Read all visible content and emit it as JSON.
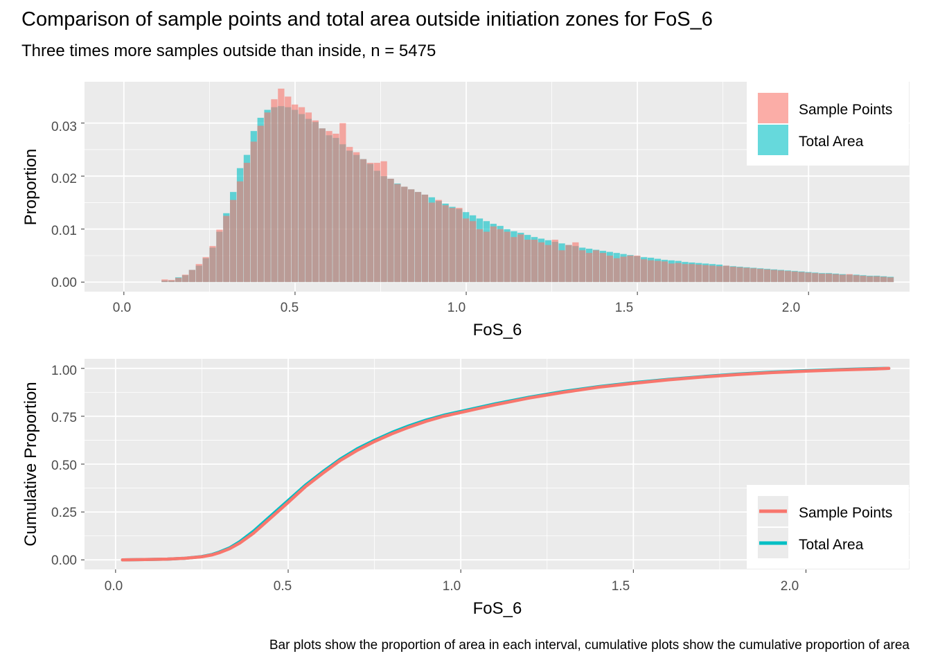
{
  "title": "Comparison of sample points and total area outside initiation zones for FoS_6",
  "subtitle": "Three times more samples outside than inside, n = 5475",
  "caption": "Bar plots show the proportion of area in each interval, cumulative plots show the cumulative proportion of area",
  "colors": {
    "sample_points": "#F8766D",
    "total_area": "#00BFC4",
    "panel_bg": "#EBEBEB",
    "grid": "#FFFFFF"
  },
  "chart_data": [
    {
      "type": "bar",
      "xlabel": "FoS_6",
      "ylabel": "Proportion",
      "xlim": [
        -0.115,
        2.295
      ],
      "ylim": [
        -0.0018,
        0.0378
      ],
      "xticks": [
        0.0,
        0.5,
        1.0,
        1.5,
        2.0
      ],
      "xtick_labels": [
        "0.0",
        "0.5",
        "1.0",
        "1.5",
        "2.0"
      ],
      "yticks": [
        0.0,
        0.01,
        0.02,
        0.03
      ],
      "ytick_labels": [
        "0.00",
        "0.01",
        "0.02",
        "0.03"
      ],
      "grid": true,
      "legend_position": "top-right",
      "bin_width": 0.02,
      "x": [
        0.12,
        0.14,
        0.16,
        0.18,
        0.2,
        0.22,
        0.24,
        0.26,
        0.28,
        0.3,
        0.32,
        0.34,
        0.36,
        0.38,
        0.4,
        0.42,
        0.44,
        0.46,
        0.48,
        0.5,
        0.52,
        0.54,
        0.56,
        0.58,
        0.6,
        0.62,
        0.64,
        0.66,
        0.68,
        0.7,
        0.72,
        0.74,
        0.76,
        0.78,
        0.8,
        0.82,
        0.84,
        0.86,
        0.88,
        0.9,
        0.92,
        0.94,
        0.96,
        0.98,
        1.0,
        1.02,
        1.04,
        1.06,
        1.08,
        1.1,
        1.12,
        1.14,
        1.16,
        1.18,
        1.2,
        1.22,
        1.24,
        1.26,
        1.28,
        1.3,
        1.32,
        1.34,
        1.36,
        1.38,
        1.4,
        1.42,
        1.44,
        1.46,
        1.48,
        1.5,
        1.52,
        1.54,
        1.56,
        1.58,
        1.6,
        1.62,
        1.64,
        1.66,
        1.68,
        1.7,
        1.72,
        1.74,
        1.76,
        1.78,
        1.8,
        1.82,
        1.84,
        1.86,
        1.88,
        1.9,
        1.92,
        1.94,
        1.96,
        1.98,
        2.0,
        2.02,
        2.04,
        2.06,
        2.08,
        2.1,
        2.12,
        2.14,
        2.16,
        2.18,
        2.2,
        2.22,
        2.24
      ],
      "series": [
        {
          "name": "Sample Points",
          "values": [
            0.0005,
            0.0004,
            0.0008,
            0.0014,
            0.0023,
            0.0034,
            0.0047,
            0.0068,
            0.0099,
            0.0125,
            0.0155,
            0.019,
            0.0225,
            0.0265,
            0.0295,
            0.032,
            0.0345,
            0.0365,
            0.035,
            0.0335,
            0.033,
            0.032,
            0.0305,
            0.029,
            0.0285,
            0.028,
            0.03,
            0.0255,
            0.0245,
            0.0232,
            0.0225,
            0.0225,
            0.0228,
            0.0195,
            0.0185,
            0.018,
            0.0175,
            0.017,
            0.0165,
            0.015,
            0.0155,
            0.0145,
            0.014,
            0.014,
            0.012,
            0.0115,
            0.01,
            0.0095,
            0.0105,
            0.01,
            0.0095,
            0.0085,
            0.009,
            0.008,
            0.008,
            0.0075,
            0.007,
            0.008,
            0.006,
            0.007,
            0.0075,
            0.006,
            0.0055,
            0.006,
            0.0055,
            0.005,
            0.0045,
            0.0048,
            0.005,
            0.005,
            0.0043,
            0.0041,
            0.004,
            0.0039,
            0.0035,
            0.0036,
            0.0034,
            0.0034,
            0.0033,
            0.0032,
            0.0031,
            0.003,
            0.0031,
            0.0029,
            0.0028,
            0.0027,
            0.0026,
            0.0025,
            0.0024,
            0.0023,
            0.0022,
            0.0021,
            0.002,
            0.0019,
            0.0018,
            0.0017,
            0.0016,
            0.0016,
            0.0015,
            0.0014,
            0.0015,
            0.0013,
            0.0012,
            0.0011,
            0.0011,
            0.001,
            0.0009
          ]
        },
        {
          "name": "Total Area",
          "values": [
            0.0003,
            0.0003,
            0.0009,
            0.0013,
            0.0023,
            0.0031,
            0.0045,
            0.0065,
            0.0095,
            0.013,
            0.017,
            0.0215,
            0.024,
            0.0285,
            0.031,
            0.0325,
            0.033,
            0.0332,
            0.033,
            0.0325,
            0.0317,
            0.0308,
            0.0302,
            0.029,
            0.0277,
            0.0272,
            0.026,
            0.0248,
            0.024,
            0.0232,
            0.0223,
            0.021,
            0.02,
            0.0195,
            0.0186,
            0.018,
            0.0175,
            0.017,
            0.0165,
            0.016,
            0.0153,
            0.0148,
            0.0142,
            0.0138,
            0.0132,
            0.0126,
            0.012,
            0.0115,
            0.011,
            0.0106,
            0.01,
            0.0096,
            0.0093,
            0.0089,
            0.0085,
            0.0082,
            0.0079,
            0.0076,
            0.0073,
            0.007,
            0.0068,
            0.0065,
            0.0063,
            0.0061,
            0.0059,
            0.0057,
            0.0055,
            0.0053,
            0.0051,
            0.0049,
            0.0047,
            0.0046,
            0.0044,
            0.0042,
            0.0041,
            0.004,
            0.0038,
            0.0037,
            0.0036,
            0.0035,
            0.0034,
            0.0033,
            0.0031,
            0.003,
            0.0029,
            0.0028,
            0.0027,
            0.0026,
            0.0025,
            0.0024,
            0.0023,
            0.0022,
            0.0021,
            0.002,
            0.0019,
            0.0018,
            0.0017,
            0.0017,
            0.0016,
            0.0015,
            0.0014,
            0.0014,
            0.0013,
            0.0012,
            0.0012,
            0.0011,
            0.001
          ]
        }
      ]
    },
    {
      "type": "line",
      "xlabel": "FoS_6",
      "ylabel": "Cumulative Proportion",
      "xlim": [
        -0.09,
        2.3
      ],
      "ylim": [
        -0.05,
        1.05
      ],
      "xticks": [
        0.0,
        0.5,
        1.0,
        1.5,
        2.0
      ],
      "xtick_labels": [
        "0.0",
        "0.5",
        "1.0",
        "1.5",
        "2.0"
      ],
      "yticks": [
        0.0,
        0.25,
        0.5,
        0.75,
        1.0
      ],
      "ytick_labels": [
        "0.00",
        "0.25",
        "0.50",
        "0.75",
        "1.00"
      ],
      "grid": true,
      "legend_position": "bottom-right",
      "series": [
        {
          "name": "Total Area",
          "x": [
            0.02,
            0.1,
            0.15,
            0.2,
            0.25,
            0.28,
            0.3,
            0.33,
            0.36,
            0.4,
            0.45,
            0.5,
            0.55,
            0.6,
            0.65,
            0.7,
            0.75,
            0.8,
            0.85,
            0.9,
            0.95,
            1.0,
            1.1,
            1.2,
            1.3,
            1.4,
            1.5,
            1.6,
            1.7,
            1.8,
            1.9,
            2.0,
            2.1,
            2.2,
            2.24
          ],
          "values": [
            0.0,
            0.002,
            0.004,
            0.008,
            0.017,
            0.028,
            0.04,
            0.062,
            0.095,
            0.15,
            0.23,
            0.31,
            0.39,
            0.46,
            0.525,
            0.58,
            0.625,
            0.665,
            0.7,
            0.73,
            0.755,
            0.775,
            0.815,
            0.85,
            0.88,
            0.905,
            0.925,
            0.942,
            0.957,
            0.97,
            0.98,
            0.988,
            0.994,
            0.999,
            1.0
          ]
        },
        {
          "name": "Sample Points",
          "x": [
            0.02,
            0.1,
            0.15,
            0.2,
            0.25,
            0.28,
            0.3,
            0.33,
            0.36,
            0.4,
            0.45,
            0.5,
            0.55,
            0.6,
            0.65,
            0.7,
            0.75,
            0.8,
            0.85,
            0.9,
            0.95,
            1.0,
            1.1,
            1.2,
            1.3,
            1.4,
            1.5,
            1.6,
            1.7,
            1.8,
            1.9,
            2.0,
            2.1,
            2.2,
            2.24
          ],
          "values": [
            0.0,
            0.002,
            0.004,
            0.008,
            0.016,
            0.026,
            0.037,
            0.058,
            0.088,
            0.14,
            0.22,
            0.3,
            0.382,
            0.452,
            0.518,
            0.572,
            0.618,
            0.658,
            0.693,
            0.724,
            0.75,
            0.77,
            0.81,
            0.846,
            0.876,
            0.902,
            0.922,
            0.94,
            0.955,
            0.968,
            0.978,
            0.986,
            0.992,
            0.997,
            1.0
          ]
        }
      ]
    }
  ]
}
